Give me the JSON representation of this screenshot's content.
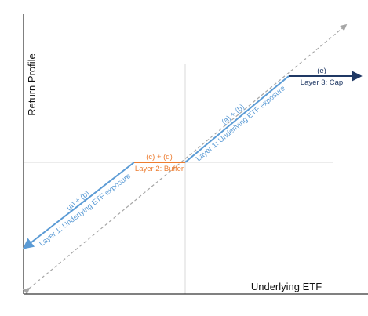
{
  "axes": {
    "y_label": "Return Profile",
    "x_label": "Underlying ETF"
  },
  "segments": {
    "lower": {
      "top_label": "(a) + (b)",
      "bottom_label": "Layer 1: Underlying ETF exposure"
    },
    "buffer": {
      "top_label": "(c) + (d)",
      "bottom_label": "Layer 2: Buffer"
    },
    "upper": {
      "top_label": "(a) + (b)",
      "bottom_label": "Layer 1: Underlying ETF exposure"
    },
    "cap": {
      "top_label": "(e)",
      "bottom_label": "Layer 3: Cap"
    }
  },
  "colors": {
    "layer1": "#5B9BD5",
    "buffer": "#ED7D31",
    "cap": "#1F3864",
    "reference_line": "#A6A6A6",
    "axis": "#000000",
    "gridline": "#D9D9D9"
  }
}
